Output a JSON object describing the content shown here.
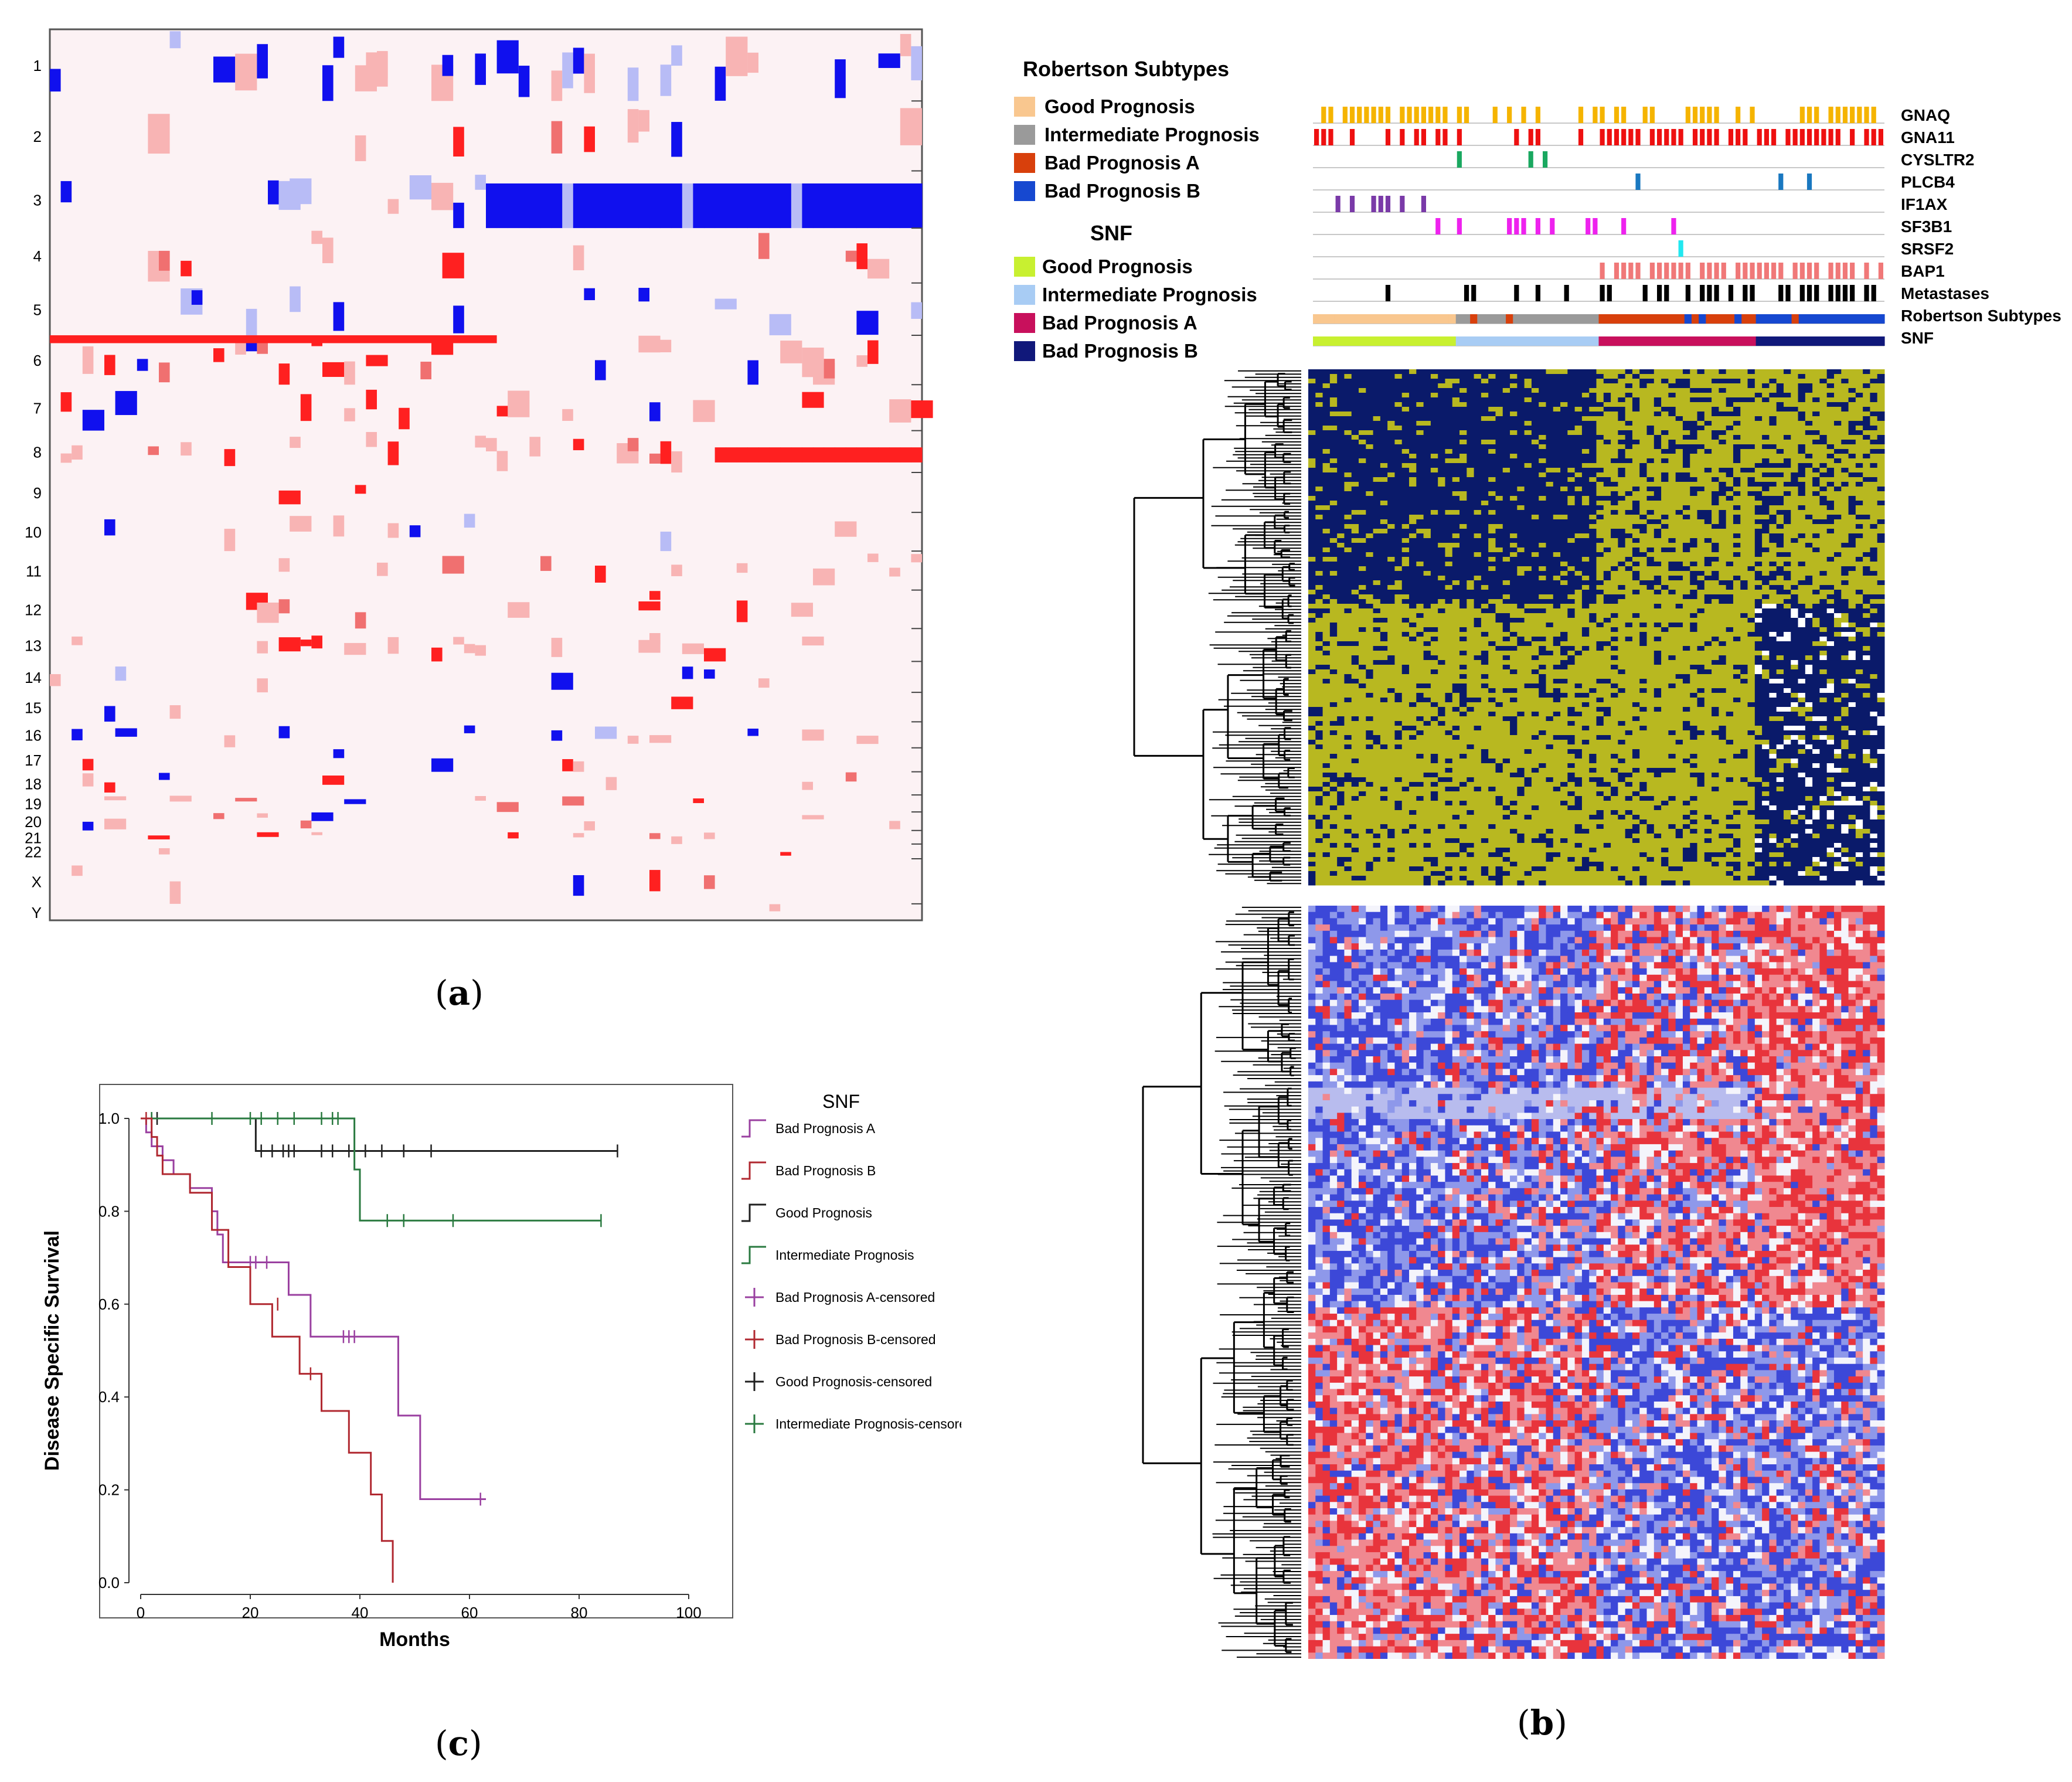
{
  "panel_labels": {
    "a": "a",
    "b": "b",
    "c": "c"
  },
  "colors": {
    "gain": "#ff2020",
    "gain_light": "#f8b4b4",
    "gain_mid": "#f07070",
    "loss": "#1010ee",
    "loss_light": "#b8bcf6",
    "loss_mid": "#5a60f0",
    "background_a": "#fcf2f4",
    "heat_yellow": "#b8b820",
    "heat_navy": "#0a1a6a",
    "expr_red": "#e8343c",
    "expr_blue": "#3c48d8",
    "expr_white": "#f4f4fb"
  },
  "chart_data": [
    {
      "type": "heatmap",
      "panel": "a",
      "ylabels": [
        "1",
        "2",
        "3",
        "4",
        "5",
        "6",
        "7",
        "8",
        "9",
        "10",
        "11",
        "12",
        "13",
        "14",
        "15",
        "16",
        "17",
        "18",
        "19",
        "20",
        "21",
        "22",
        "X",
        "Y"
      ],
      "legend": []
    },
    {
      "type": "heatmap",
      "panel": "b",
      "legend_groups": [
        {
          "title": "Robertson Subtypes",
          "items": [
            {
              "label": "Good Prognosis",
              "color": "#f9c78f"
            },
            {
              "label": "Intermediate Prognosis",
              "color": "#9a9a9a"
            },
            {
              "label": "Bad Prognosis A",
              "color": "#d8400c"
            },
            {
              "label": "Bad Prognosis B",
              "color": "#1648d0"
            }
          ]
        },
        {
          "title": "SNF",
          "items": [
            {
              "label": "Good Prognosis",
              "color": "#c8f030"
            },
            {
              "label": "Intermediate Prognosis",
              "color": "#a8ccf4"
            },
            {
              "label": "Bad Prognosis A",
              "color": "#c8105c"
            },
            {
              "label": "Bad Prognosis B",
              "color": "#10187a"
            }
          ]
        }
      ],
      "tracks": [
        {
          "label": "GNAQ",
          "color": "#f5b400"
        },
        {
          "label": "GNA11",
          "color": "#ee1010"
        },
        {
          "label": "CYSLTR2",
          "color": "#1aa860"
        },
        {
          "label": "PLCB4",
          "color": "#1a78c0"
        },
        {
          "label": "IF1AX",
          "color": "#7a3aa8"
        },
        {
          "label": "SF3B1",
          "color": "#ee22ee"
        },
        {
          "label": "SRSF2",
          "color": "#22e8f0"
        },
        {
          "label": "BAP1",
          "color": "#f07878"
        },
        {
          "label": "Metastases",
          "color": "#000000"
        },
        {
          "label": "Robertson Subtypes",
          "color": ""
        },
        {
          "label": "SNF",
          "color": ""
        }
      ]
    },
    {
      "type": "line",
      "panel": "c",
      "title": "",
      "xlabel": "Months",
      "ylabel": "Disease Specific Survival",
      "xlim": [
        0,
        100
      ],
      "ylim": [
        0,
        1.0
      ],
      "xticks": [
        "0",
        "20",
        "40",
        "60",
        "80",
        "100"
      ],
      "yticks": [
        "0.0",
        "0.2",
        "0.4",
        "0.6",
        "0.8",
        "1.0"
      ],
      "legend_title": "SNF",
      "legend_placement": "right",
      "legend": [
        {
          "label": "Bad Prognosis A",
          "kind": "step",
          "color": "#9a40a0"
        },
        {
          "label": "Bad Prognosis B",
          "kind": "step",
          "color": "#b02830"
        },
        {
          "label": "Good Prognosis",
          "kind": "step",
          "color": "#202020"
        },
        {
          "label": "Intermediate Prognosis",
          "kind": "step",
          "color": "#2a7a40"
        },
        {
          "label": "Bad Prognosis A-censored",
          "kind": "cross",
          "color": "#9a40a0"
        },
        {
          "label": "Bad Prognosis B-censored",
          "kind": "cross",
          "color": "#b02830"
        },
        {
          "label": "Good Prognosis-censored",
          "kind": "cross",
          "color": "#202020"
        },
        {
          "label": "Intermediate Prognosis-censored",
          "kind": "cross",
          "color": "#2a7a40"
        }
      ],
      "series": [
        {
          "name": "Good Prognosis",
          "color": "#202020",
          "steps": [
            [
              0,
              1.0
            ],
            [
              21,
              1.0
            ],
            [
              21,
              0.93
            ],
            [
              87,
              0.93
            ]
          ],
          "censored": [
            [
              2,
              1.0
            ],
            [
              3,
              1.0
            ],
            [
              22,
              0.93
            ],
            [
              24,
              0.93
            ],
            [
              26,
              0.93
            ],
            [
              27,
              0.93
            ],
            [
              28,
              0.93
            ],
            [
              33,
              0.93
            ],
            [
              35,
              0.93
            ],
            [
              38,
              0.93
            ],
            [
              41,
              0.93
            ],
            [
              44,
              0.93
            ],
            [
              48,
              0.93
            ],
            [
              53,
              0.93
            ],
            [
              87,
              0.93
            ]
          ]
        },
        {
          "name": "Intermediate Prognosis",
          "color": "#2a7a40",
          "steps": [
            [
              0,
              1.0
            ],
            [
              39,
              1.0
            ],
            [
              39,
              0.89
            ],
            [
              40,
              0.89
            ],
            [
              40,
              0.78
            ],
            [
              84,
              0.78
            ]
          ],
          "censored": [
            [
              2,
              1.0
            ],
            [
              13,
              1.0
            ],
            [
              20,
              1.0
            ],
            [
              22,
              1.0
            ],
            [
              25,
              1.0
            ],
            [
              28,
              1.0
            ],
            [
              33,
              1.0
            ],
            [
              35,
              1.0
            ],
            [
              36,
              1.0
            ],
            [
              45,
              0.78
            ],
            [
              48,
              0.78
            ],
            [
              57,
              0.78
            ],
            [
              84,
              0.78
            ]
          ]
        },
        {
          "name": "Bad Prognosis A",
          "color": "#9a40a0",
          "steps": [
            [
              0,
              1.0
            ],
            [
              1,
              1.0
            ],
            [
              1,
              0.97
            ],
            [
              2,
              0.97
            ],
            [
              2,
              0.94
            ],
            [
              4,
              0.94
            ],
            [
              4,
              0.91
            ],
            [
              6,
              0.91
            ],
            [
              6,
              0.88
            ],
            [
              9,
              0.88
            ],
            [
              9,
              0.85
            ],
            [
              13,
              0.85
            ],
            [
              13,
              0.8
            ],
            [
              14,
              0.8
            ],
            [
              14,
              0.75
            ],
            [
              15,
              0.75
            ],
            [
              15,
              0.69
            ],
            [
              27,
              0.69
            ],
            [
              27,
              0.62
            ],
            [
              31,
              0.62
            ],
            [
              31,
              0.53
            ],
            [
              35,
              0.53
            ],
            [
              35,
              0.53
            ],
            [
              47,
              0.53
            ],
            [
              47,
              0.36
            ],
            [
              51,
              0.36
            ],
            [
              51,
              0.18
            ],
            [
              63,
              0.18
            ]
          ],
          "censored": [
            [
              2,
              0.97
            ],
            [
              20,
              0.69
            ],
            [
              21,
              0.69
            ],
            [
              23,
              0.69
            ],
            [
              37,
              0.53
            ],
            [
              38,
              0.53
            ],
            [
              39,
              0.53
            ],
            [
              62,
              0.18
            ]
          ]
        },
        {
          "name": "Bad Prognosis B",
          "color": "#b02830",
          "steps": [
            [
              0,
              1.0
            ],
            [
              2,
              1.0
            ],
            [
              2,
              0.96
            ],
            [
              3,
              0.96
            ],
            [
              3,
              0.92
            ],
            [
              4,
              0.92
            ],
            [
              4,
              0.88
            ],
            [
              9,
              0.88
            ],
            [
              9,
              0.84
            ],
            [
              13,
              0.84
            ],
            [
              13,
              0.76
            ],
            [
              16,
              0.76
            ],
            [
              16,
              0.68
            ],
            [
              20,
              0.68
            ],
            [
              20,
              0.6
            ],
            [
              24,
              0.6
            ],
            [
              24,
              0.53
            ],
            [
              29,
              0.53
            ],
            [
              29,
              0.45
            ],
            [
              33,
              0.45
            ],
            [
              33,
              0.37
            ],
            [
              38,
              0.37
            ],
            [
              38,
              0.28
            ],
            [
              42,
              0.28
            ],
            [
              42,
              0.19
            ],
            [
              44,
              0.19
            ],
            [
              44,
              0.09
            ],
            [
              46,
              0.09
            ],
            [
              46,
              0.0
            ]
          ],
          "censored": [
            [
              1,
              1.0
            ],
            [
              25,
              0.6
            ],
            [
              31,
              0.45
            ]
          ]
        }
      ]
    }
  ]
}
